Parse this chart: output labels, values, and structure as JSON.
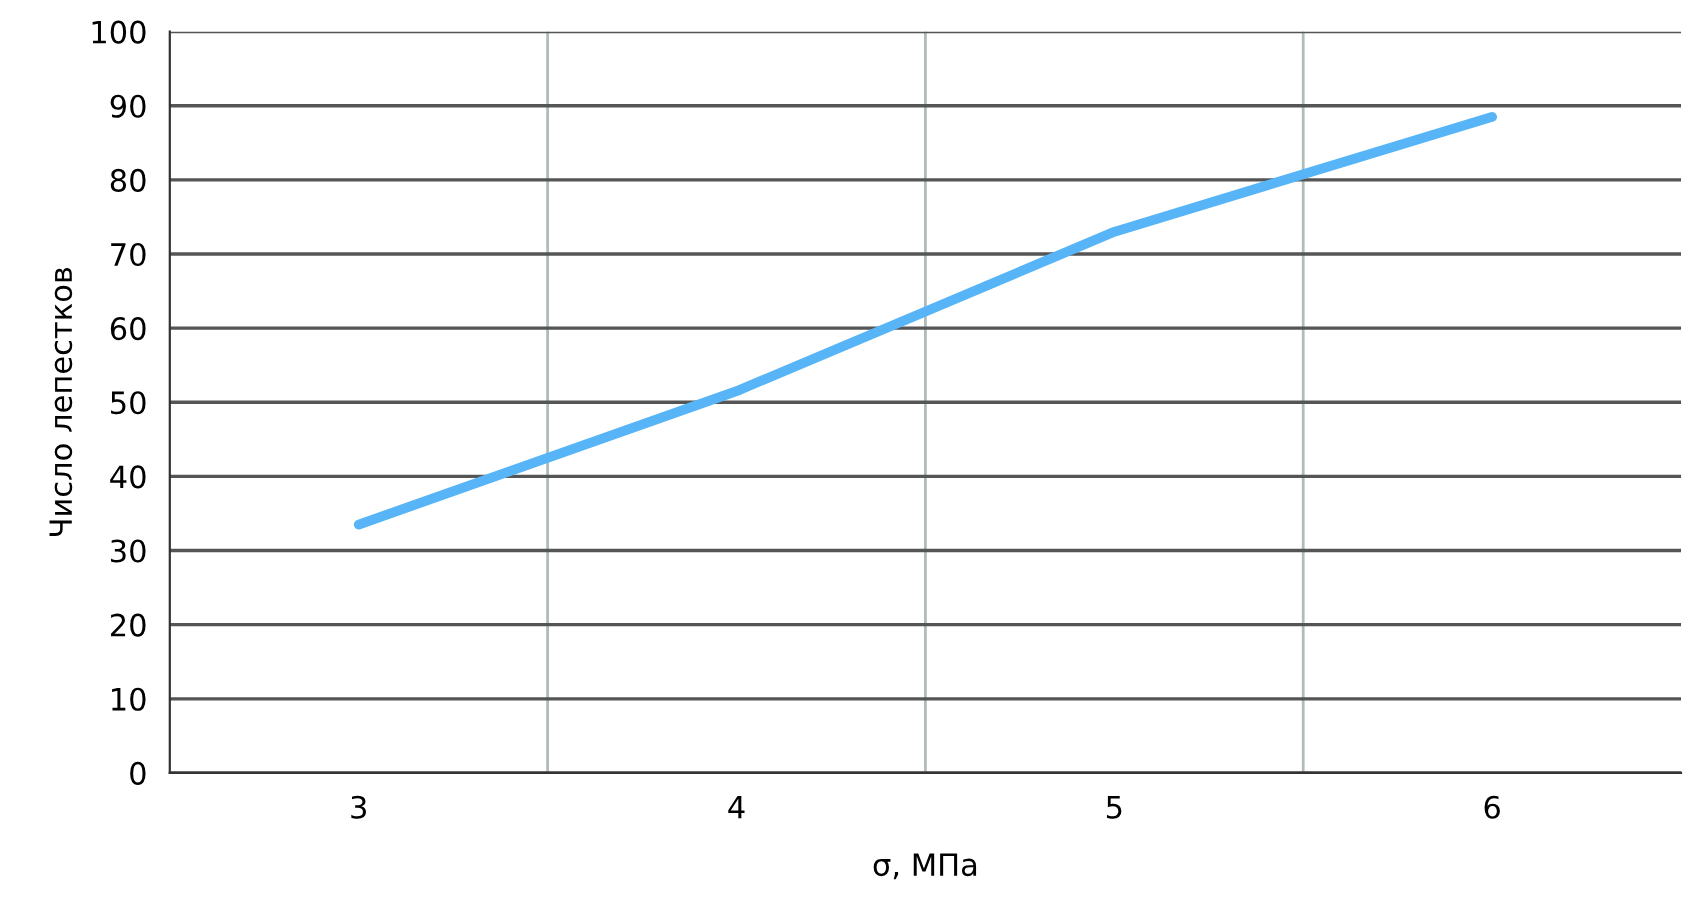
{
  "chart_data": {
    "type": "line",
    "xlabel": "σ, МПа",
    "ylabel": "Число лепестков",
    "categories": [
      "3",
      "4",
      "5",
      "6"
    ],
    "series": [
      {
        "color": "#57b5f7",
        "values": [
          33.5,
          51.5,
          73,
          88.5
        ]
      }
    ],
    "ylim": [
      0,
      100
    ],
    "yticks": [
      0,
      10,
      20,
      30,
      40,
      50,
      60,
      70,
      80,
      90,
      100
    ],
    "grid": true,
    "marker": "none",
    "line_style": "solid"
  }
}
